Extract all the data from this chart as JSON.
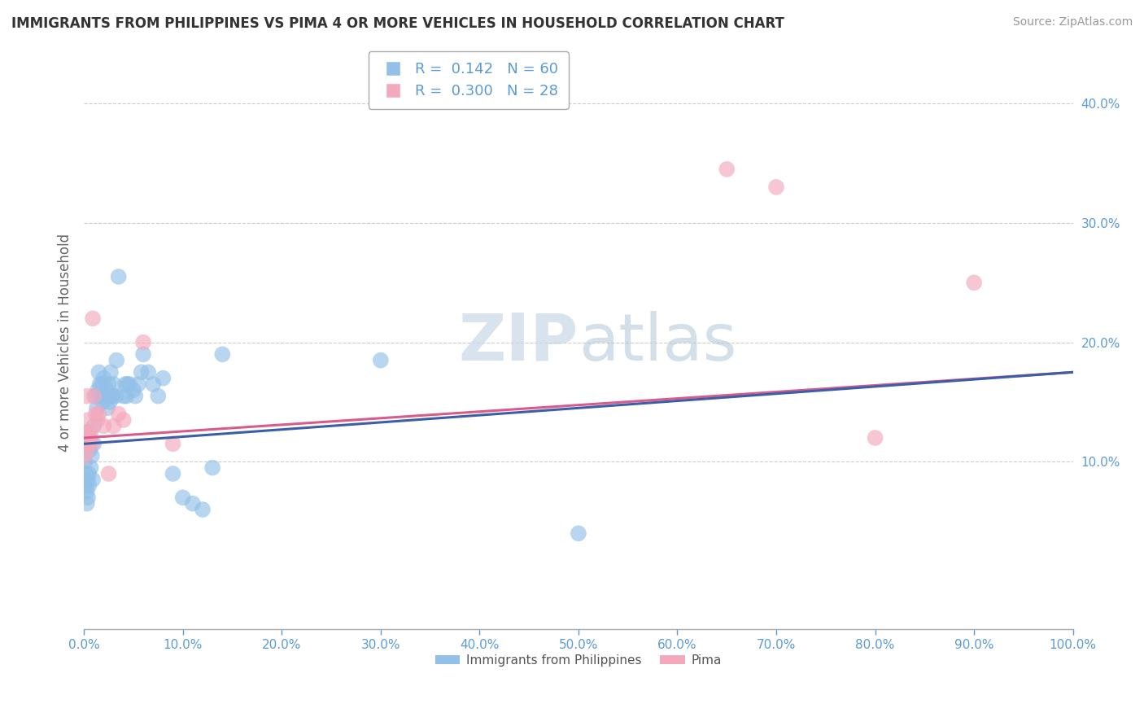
{
  "title": "IMMIGRANTS FROM PHILIPPINES VS PIMA 4 OR MORE VEHICLES IN HOUSEHOLD CORRELATION CHART",
  "source": "Source: ZipAtlas.com",
  "ylabel": "4 or more Vehicles in Household",
  "yticks": [
    "10.0%",
    "20.0%",
    "30.0%",
    "40.0%"
  ],
  "ytick_vals": [
    0.1,
    0.2,
    0.3,
    0.4
  ],
  "xlim": [
    0.0,
    1.0
  ],
  "ylim": [
    -0.04,
    0.44
  ],
  "legend_blue_r": "0.142",
  "legend_blue_n": "60",
  "legend_pink_r": "0.300",
  "legend_pink_n": "28",
  "legend_label_blue": "Immigrants from Philippines",
  "legend_label_pink": "Pima",
  "watermark_zip": "ZIP",
  "watermark_atlas": "atlas",
  "blue_color": "#92C0E8",
  "pink_color": "#F4A8BC",
  "blue_line_color": "#3A5FA8",
  "pink_line_color": "#D95B8A",
  "blue_line": [
    0.0,
    1.0,
    0.115,
    0.175
  ],
  "pink_line": [
    0.0,
    1.0,
    0.12,
    0.175
  ],
  "blue_scatter": [
    [
      0.001,
      0.12
    ],
    [
      0.001,
      0.1
    ],
    [
      0.002,
      0.09
    ],
    [
      0.002,
      0.08
    ],
    [
      0.003,
      0.075
    ],
    [
      0.003,
      0.065
    ],
    [
      0.004,
      0.085
    ],
    [
      0.004,
      0.07
    ],
    [
      0.005,
      0.09
    ],
    [
      0.005,
      0.08
    ],
    [
      0.006,
      0.11
    ],
    [
      0.007,
      0.095
    ],
    [
      0.008,
      0.105
    ],
    [
      0.009,
      0.085
    ],
    [
      0.01,
      0.115
    ],
    [
      0.01,
      0.13
    ],
    [
      0.012,
      0.155
    ],
    [
      0.013,
      0.145
    ],
    [
      0.014,
      0.16
    ],
    [
      0.015,
      0.175
    ],
    [
      0.016,
      0.165
    ],
    [
      0.017,
      0.155
    ],
    [
      0.018,
      0.165
    ],
    [
      0.019,
      0.15
    ],
    [
      0.02,
      0.17
    ],
    [
      0.021,
      0.155
    ],
    [
      0.022,
      0.155
    ],
    [
      0.023,
      0.16
    ],
    [
      0.024,
      0.145
    ],
    [
      0.025,
      0.165
    ],
    [
      0.026,
      0.15
    ],
    [
      0.027,
      0.175
    ],
    [
      0.028,
      0.155
    ],
    [
      0.029,
      0.155
    ],
    [
      0.03,
      0.165
    ],
    [
      0.032,
      0.155
    ],
    [
      0.033,
      0.185
    ],
    [
      0.035,
      0.255
    ],
    [
      0.04,
      0.155
    ],
    [
      0.042,
      0.165
    ],
    [
      0.043,
      0.155
    ],
    [
      0.044,
      0.165
    ],
    [
      0.046,
      0.165
    ],
    [
      0.05,
      0.16
    ],
    [
      0.052,
      0.155
    ],
    [
      0.055,
      0.165
    ],
    [
      0.058,
      0.175
    ],
    [
      0.06,
      0.19
    ],
    [
      0.065,
      0.175
    ],
    [
      0.07,
      0.165
    ],
    [
      0.075,
      0.155
    ],
    [
      0.08,
      0.17
    ],
    [
      0.09,
      0.09
    ],
    [
      0.1,
      0.07
    ],
    [
      0.11,
      0.065
    ],
    [
      0.12,
      0.06
    ],
    [
      0.13,
      0.095
    ],
    [
      0.14,
      0.19
    ],
    [
      0.3,
      0.185
    ],
    [
      0.5,
      0.04
    ]
  ],
  "pink_scatter": [
    [
      0.001,
      0.115
    ],
    [
      0.001,
      0.105
    ],
    [
      0.002,
      0.12
    ],
    [
      0.002,
      0.11
    ],
    [
      0.003,
      0.155
    ],
    [
      0.003,
      0.125
    ],
    [
      0.004,
      0.135
    ],
    [
      0.004,
      0.115
    ],
    [
      0.005,
      0.125
    ],
    [
      0.006,
      0.12
    ],
    [
      0.007,
      0.125
    ],
    [
      0.008,
      0.115
    ],
    [
      0.009,
      0.22
    ],
    [
      0.01,
      0.155
    ],
    [
      0.012,
      0.14
    ],
    [
      0.014,
      0.135
    ],
    [
      0.015,
      0.14
    ],
    [
      0.02,
      0.13
    ],
    [
      0.025,
      0.09
    ],
    [
      0.03,
      0.13
    ],
    [
      0.035,
      0.14
    ],
    [
      0.04,
      0.135
    ],
    [
      0.06,
      0.2
    ],
    [
      0.09,
      0.115
    ],
    [
      0.65,
      0.345
    ],
    [
      0.7,
      0.33
    ],
    [
      0.8,
      0.12
    ],
    [
      0.9,
      0.25
    ]
  ]
}
